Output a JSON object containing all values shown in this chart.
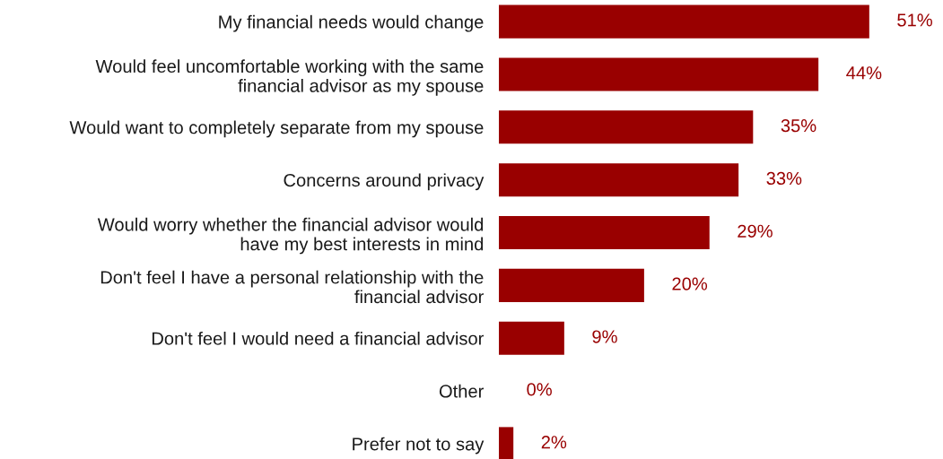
{
  "chart_data": {
    "type": "bar",
    "orientation": "horizontal",
    "categories": [
      "My financial needs would change",
      "Would feel uncomfortable working with the same financial advisor as my spouse",
      "Would want to completely separate from my spouse",
      "Concerns around privacy",
      "Would worry whether the financial advisor would have my best interests in mind",
      "Don't feel I have a personal relationship with the financial advisor",
      "Don't feel I would need a financial advisor",
      "Other",
      "Prefer not to say"
    ],
    "values": [
      51,
      44,
      35,
      33,
      29,
      20,
      9,
      0,
      2
    ],
    "value_labels": [
      "51%",
      "44%",
      "35%",
      "33%",
      "29%",
      "20%",
      "9%",
      "0%",
      "2%"
    ],
    "color": "#990000",
    "tick_labels": "y",
    "grid": false,
    "legend": false
  }
}
